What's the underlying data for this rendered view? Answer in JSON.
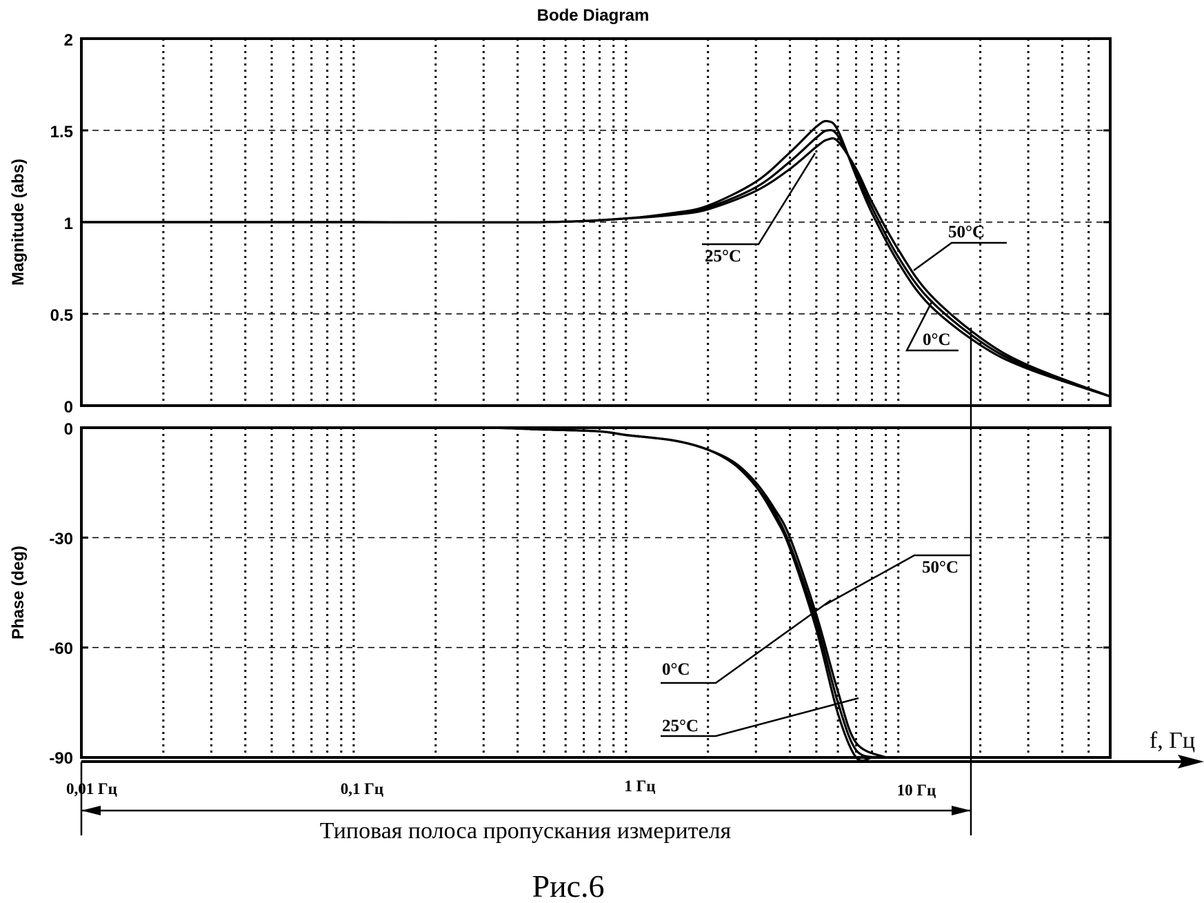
{
  "chart_data": {
    "type": "line",
    "title": "Bode Diagram",
    "figure_caption": "Рис.6",
    "x_axis_label": "f, Гц",
    "x_scale": "log",
    "x_range": [
      0.01,
      60
    ],
    "x_ticks": [
      {
        "value": 0.01,
        "label": "0,01 Гц"
      },
      {
        "value": 0.1,
        "label": "0,1 Гц"
      },
      {
        "value": 1,
        "label": "1 Гц"
      },
      {
        "value": 10,
        "label": "10 Гц"
      }
    ],
    "bandwidth": {
      "label": "Типовая полоса пропускания измерителя",
      "from": 0.01,
      "to": 20
    },
    "panels": [
      {
        "name": "magnitude",
        "ylabel": "Magnitude (abs)",
        "ylim": [
          0,
          2
        ],
        "y_ticks": [
          {
            "value": 0,
            "label": "0"
          },
          {
            "value": 0.5,
            "label": "0.5"
          },
          {
            "value": 1,
            "label": "1"
          },
          {
            "value": 1.5,
            "label": "1.5"
          },
          {
            "value": 2,
            "label": "2"
          }
        ],
        "series": [
          {
            "name": "0°C",
            "x": [
              0.01,
              0.1,
              0.5,
              1,
              1.5,
              2,
              3,
              4,
              5,
              5.5,
              6,
              7,
              8,
              10,
              13,
              20,
              30,
              60
            ],
            "y": [
              1.0,
              1.0,
              1.0,
              1.02,
              1.05,
              1.09,
              1.22,
              1.38,
              1.52,
              1.55,
              1.5,
              1.25,
              1.05,
              0.78,
              0.55,
              0.33,
              0.2,
              0.05
            ]
          },
          {
            "name": "25°C",
            "x": [
              0.01,
              0.1,
              0.5,
              1,
              1.5,
              2,
              3,
              4,
              5,
              5.5,
              6,
              7,
              8,
              10,
              13,
              20,
              30,
              60
            ],
            "y": [
              1.0,
              1.0,
              1.0,
              1.02,
              1.05,
              1.08,
              1.19,
              1.33,
              1.46,
              1.5,
              1.47,
              1.27,
              1.08,
              0.81,
              0.58,
              0.35,
              0.21,
              0.05
            ]
          },
          {
            "name": "50°C",
            "x": [
              0.01,
              0.1,
              0.5,
              1,
              1.5,
              2,
              3,
              4,
              5,
              5.5,
              6,
              7,
              8,
              10,
              13,
              20,
              30,
              60
            ],
            "y": [
              1.0,
              1.0,
              1.0,
              1.02,
              1.04,
              1.07,
              1.17,
              1.29,
              1.41,
              1.45,
              1.44,
              1.29,
              1.11,
              0.85,
              0.61,
              0.37,
              0.22,
              0.05
            ]
          }
        ],
        "annotations": [
          {
            "text": "25°C",
            "target_x": 3.5,
            "target_y": 1.3
          },
          {
            "text": "50°C",
            "target_x": 11,
            "target_y": 0.65
          },
          {
            "text": "0°C",
            "target_x": 11.5,
            "target_y": 0.6
          }
        ]
      },
      {
        "name": "phase",
        "ylabel": "Phase (deg)",
        "ylim": [
          -90,
          0
        ],
        "y_ticks": [
          {
            "value": 0,
            "label": "0"
          },
          {
            "value": -30,
            "label": "-30"
          },
          {
            "value": -60,
            "label": "-60"
          },
          {
            "value": -90,
            "label": "-90"
          }
        ],
        "series": [
          {
            "name": "0°C",
            "x": [
              0.01,
              0.1,
              0.3,
              0.5,
              0.8,
              1,
              1.5,
              2,
              2.5,
              3,
              3.5,
              4,
              5,
              6,
              7,
              8
            ],
            "y": [
              0,
              0,
              0,
              -0.5,
              -1,
              -2,
              -3.5,
              -6,
              -10,
              -16,
              -24,
              -33,
              -55,
              -78,
              -90,
              -90
            ]
          },
          {
            "name": "25°C",
            "x": [
              0.01,
              0.1,
              0.3,
              0.5,
              0.8,
              1,
              1.5,
              2,
              2.5,
              3,
              3.5,
              4,
              5,
              6,
              7,
              8.5
            ],
            "y": [
              0,
              0,
              0,
              -0.5,
              -1,
              -2,
              -3.5,
              -6,
              -10,
              -16,
              -23,
              -32,
              -53,
              -75,
              -88,
              -90
            ]
          },
          {
            "name": "50°C",
            "x": [
              0.01,
              0.1,
              0.3,
              0.5,
              0.8,
              1,
              1.5,
              2,
              2.5,
              3,
              3.5,
              4,
              5,
              6,
              7,
              9
            ],
            "y": [
              0,
              0,
              0,
              -0.5,
              -1,
              -2,
              -3.5,
              -6,
              -9.5,
              -15,
              -22,
              -30,
              -51,
              -72,
              -86,
              -90
            ]
          }
        ],
        "annotations": [
          {
            "text": "50°C",
            "target_x": 4.3,
            "target_y": -46
          },
          {
            "text": "0°C",
            "target_x": 4.3,
            "target_y": -46
          },
          {
            "text": "25°C",
            "target_x": 7,
            "target_y": -75
          }
        ]
      }
    ]
  }
}
